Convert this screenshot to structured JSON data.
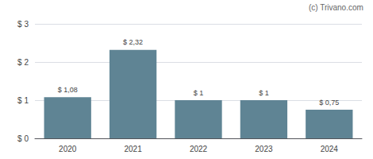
{
  "chart_data": {
    "type": "bar",
    "categories": [
      "2020",
      "2021",
      "2022",
      "2023",
      "2024"
    ],
    "values": [
      1.08,
      2.32,
      1.0,
      1.0,
      0.75
    ],
    "value_labels": [
      "$ 1,08",
      "$ 2,32",
      "$ 1",
      "$ 1",
      "$ 0,75"
    ],
    "data_labels": true,
    "color": "#5f8494",
    "ylim": [
      0,
      3
    ],
    "yticks": [
      {
        "value": 0,
        "label": "$ 0"
      },
      {
        "value": 1,
        "label": "$ 1"
      },
      {
        "value": 2,
        "label": "$ 2"
      },
      {
        "value": 3,
        "label": "$ 3"
      }
    ],
    "grid": true,
    "annotations": [
      "(c) Trivano.com"
    ]
  }
}
